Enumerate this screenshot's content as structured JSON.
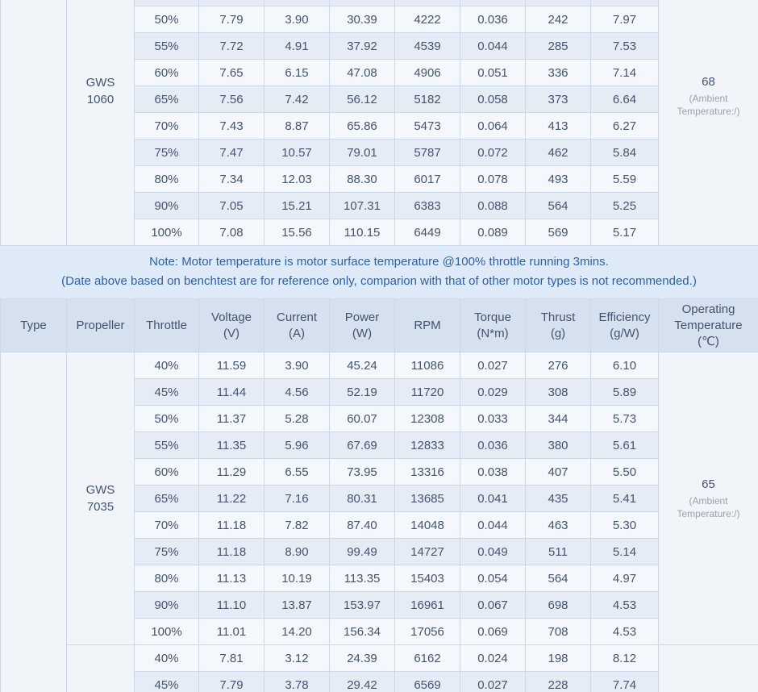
{
  "note": {
    "line1": "Note: Motor temperature is motor surface temperature @100% throttle running 3mins.",
    "line2": "(Date above based on benchtest are for reference only, comparion with that of other motor types is not recommended.)"
  },
  "header": {
    "type": "Type",
    "propeller": "Propeller",
    "throttle": "Throttle",
    "voltage": "Voltage\n(V)",
    "current": "Current\n(A)",
    "power": "Power\n(W)",
    "rpm": "RPM",
    "torque": "Torque\n(N*m)",
    "thrust": "Thrust\n(g)",
    "efficiency": "Efficiency\n(g/W)",
    "operating_temperature": "Operating\nTemperature\n(℃)"
  },
  "top_table": {
    "propeller": "GWS 1060",
    "temperature": "68",
    "temperature_note": "(Ambient Temperature:/)",
    "rows": [
      [
        "50%",
        "7.79",
        "3.90",
        "30.39",
        "4222",
        "0.036",
        "242",
        "7.97"
      ],
      [
        "55%",
        "7.72",
        "4.91",
        "37.92",
        "4539",
        "0.044",
        "285",
        "7.53"
      ],
      [
        "60%",
        "7.65",
        "6.15",
        "47.08",
        "4906",
        "0.051",
        "336",
        "7.14"
      ],
      [
        "65%",
        "7.56",
        "7.42",
        "56.12",
        "5182",
        "0.058",
        "373",
        "6.64"
      ],
      [
        "70%",
        "7.43",
        "8.87",
        "65.86",
        "5473",
        "0.064",
        "413",
        "6.27"
      ],
      [
        "75%",
        "7.47",
        "10.57",
        "79.01",
        "5787",
        "0.072",
        "462",
        "5.84"
      ],
      [
        "80%",
        "7.34",
        "12.03",
        "88.30",
        "6017",
        "0.078",
        "493",
        "5.59"
      ],
      [
        "90%",
        "7.05",
        "15.21",
        "107.31",
        "6383",
        "0.088",
        "564",
        "5.25"
      ],
      [
        "100%",
        "7.08",
        "15.56",
        "110.15",
        "6449",
        "0.089",
        "569",
        "5.17"
      ]
    ]
  },
  "bottom_table": {
    "sections": [
      {
        "propeller": "GWS 7035",
        "temperature": "65",
        "temperature_note": "(Ambient Temperature:/)",
        "rows": [
          [
            "40%",
            "11.59",
            "3.90",
            "45.24",
            "11086",
            "0.027",
            "276",
            "6.10"
          ],
          [
            "45%",
            "11.44",
            "4.56",
            "52.19",
            "11720",
            "0.029",
            "308",
            "5.89"
          ],
          [
            "50%",
            "11.37",
            "5.28",
            "60.07",
            "12308",
            "0.033",
            "344",
            "5.73"
          ],
          [
            "55%",
            "11.35",
            "5.96",
            "67.69",
            "12833",
            "0.036",
            "380",
            "5.61"
          ],
          [
            "60%",
            "11.29",
            "6.55",
            "73.95",
            "13316",
            "0.038",
            "407",
            "5.50"
          ],
          [
            "65%",
            "11.22",
            "7.16",
            "80.31",
            "13685",
            "0.041",
            "435",
            "5.41"
          ],
          [
            "70%",
            "11.18",
            "7.82",
            "87.40",
            "14048",
            "0.044",
            "463",
            "5.30"
          ],
          [
            "75%",
            "11.18",
            "8.90",
            "99.49",
            "14727",
            "0.049",
            "511",
            "5.14"
          ],
          [
            "80%",
            "11.13",
            "10.19",
            "113.35",
            "15403",
            "0.054",
            "564",
            "4.97"
          ],
          [
            "90%",
            "11.10",
            "13.87",
            "153.97",
            "16961",
            "0.067",
            "698",
            "4.53"
          ],
          [
            "100%",
            "11.01",
            "14.20",
            "156.34",
            "17056",
            "0.069",
            "708",
            "4.53"
          ]
        ]
      },
      {
        "propeller": "",
        "temperature": "",
        "temperature_note": "",
        "rows": [
          [
            "40%",
            "7.81",
            "3.12",
            "24.39",
            "6162",
            "0.024",
            "198",
            "8.12"
          ],
          [
            "45%",
            "7.79",
            "3.78",
            "29.42",
            "6569",
            "0.027",
            "228",
            "7.74"
          ]
        ]
      }
    ]
  }
}
